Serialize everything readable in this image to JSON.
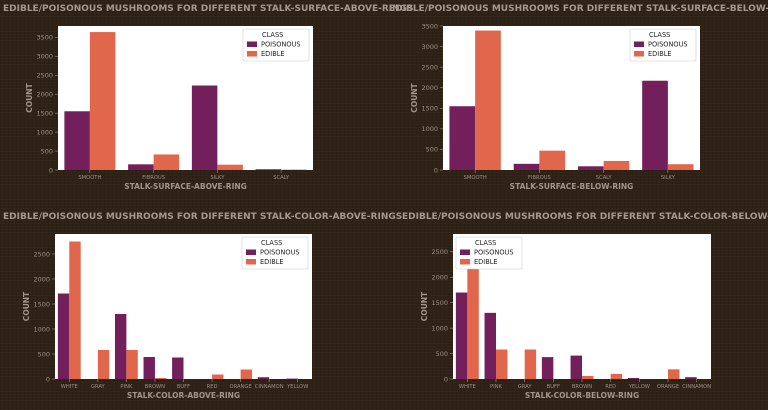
{
  "colors": {
    "poisonous": "#731f5b",
    "edible": "#e0674c",
    "plot_bg": "#ffffff"
  },
  "chart_data": [
    {
      "type": "bar",
      "title": "EDIBLE/POISONOUS MUSHROOMS FOR DIFFERENT STALK-SURFACE-ABOVE-RINGS",
      "xlabel": "STALK-SURFACE-ABOVE-RING",
      "ylabel": "COUNT",
      "categories": [
        "SMOOTH",
        "FIBROUS",
        "SILKY",
        "SCALY"
      ],
      "series": [
        {
          "name": "POISONOUS",
          "values": [
            1550,
            150,
            2230,
            20
          ]
        },
        {
          "name": "EDIBLE",
          "values": [
            3640,
            410,
            140,
            10
          ]
        }
      ],
      "ylim": [
        0,
        3800
      ],
      "yticks": [
        0,
        500,
        1000,
        1500,
        2000,
        2500,
        3000,
        3500
      ],
      "legend_title": "CLASS",
      "legend_position": "top-right",
      "grid": false
    },
    {
      "type": "bar",
      "title": "EDIBLE/POISONOUS MUSHROOMS FOR DIFFERENT STALK-SURFACE-BELOW-RINGS",
      "xlabel": "STALK-SURFACE-BELOW-RING",
      "ylabel": "COUNT",
      "categories": [
        "SMOOTH",
        "FIBROUS",
        "SCALY",
        "SILKY"
      ],
      "series": [
        {
          "name": "POISONOUS",
          "values": [
            1550,
            150,
            90,
            2170
          ]
        },
        {
          "name": "EDIBLE",
          "values": [
            3390,
            470,
            220,
            140
          ]
        }
      ],
      "ylim": [
        0,
        3500
      ],
      "yticks": [
        0,
        500,
        1000,
        1500,
        2000,
        2500,
        3000,
        3500
      ],
      "legend_title": "CLASS",
      "legend_position": "top-right",
      "grid": false
    },
    {
      "type": "bar",
      "title": "EDIBLE/POISONOUS MUSHROOMS FOR DIFFERENT STALK-COLOR-ABOVE-RINGS",
      "xlabel": "STALK-COLOR-ABOVE-RING",
      "ylabel": "COUNT",
      "categories": [
        "WHITE",
        "GRAY",
        "PINK",
        "BROWN",
        "BUFF",
        "RED",
        "ORANGE",
        "CINNAMON",
        "YELLOW"
      ],
      "series": [
        {
          "name": "POISONOUS",
          "values": [
            1710,
            0,
            1300,
            440,
            430,
            0,
            0,
            36,
            8
          ]
        },
        {
          "name": "EDIBLE",
          "values": [
            2750,
            580,
            580,
            20,
            0,
            90,
            190,
            0,
            0
          ]
        }
      ],
      "ylim": [
        0,
        2900
      ],
      "yticks": [
        0,
        500,
        1000,
        1500,
        2000,
        2500
      ],
      "legend_title": "CLASS",
      "legend_position": "top-right",
      "grid": false
    },
    {
      "type": "bar",
      "title": "EDIBLE/POISONOUS MUSHROOMS FOR DIFFERENT STALK-COLOR-BELOW-RINGS",
      "xlabel": "STALK-COLOR-BELOW-RING",
      "ylabel": "COUNT",
      "categories": [
        "WHITE",
        "PINK",
        "GRAY",
        "BUFF",
        "BROWN",
        "RED",
        "YELLOW",
        "ORANGE",
        "CINNAMON"
      ],
      "series": [
        {
          "name": "POISONOUS",
          "values": [
            1700,
            1300,
            0,
            430,
            460,
            0,
            20,
            0,
            36
          ]
        },
        {
          "name": "EDIBLE",
          "values": [
            2700,
            580,
            580,
            0,
            60,
            100,
            0,
            190,
            0
          ]
        }
      ],
      "ylim": [
        0,
        2850
      ],
      "yticks": [
        0,
        500,
        1000,
        1500,
        2000,
        2500
      ],
      "legend_title": "CLASS",
      "legend_position": "top-left",
      "grid": false
    }
  ]
}
